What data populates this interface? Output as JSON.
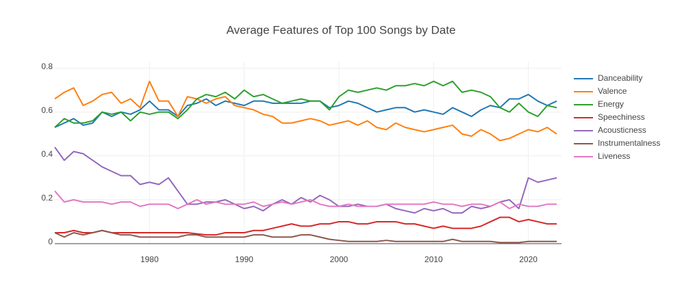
{
  "chart_data": {
    "type": "line",
    "title": "Average Features of Top 100 Songs by Date",
    "x": [
      1970,
      1971,
      1972,
      1973,
      1974,
      1975,
      1976,
      1977,
      1978,
      1979,
      1980,
      1981,
      1982,
      1983,
      1984,
      1985,
      1986,
      1987,
      1988,
      1989,
      1990,
      1991,
      1992,
      1993,
      1994,
      1995,
      1996,
      1997,
      1998,
      1999,
      2000,
      2001,
      2002,
      2003,
      2004,
      2005,
      2006,
      2007,
      2008,
      2009,
      2010,
      2011,
      2012,
      2013,
      2014,
      2015,
      2016,
      2017,
      2018,
      2019,
      2020,
      2021,
      2022,
      2023
    ],
    "xlim": [
      1970,
      2023.5
    ],
    "xticks": [
      1980,
      1990,
      2000,
      2010,
      2020
    ],
    "ylim": [
      0,
      0.83
    ],
    "yticks": [
      0,
      0.2,
      0.4,
      0.6,
      0.8
    ],
    "grid": true,
    "series": [
      {
        "name": "Danceability",
        "color": "#1f77b4",
        "values": [
          0.53,
          0.55,
          0.57,
          0.54,
          0.55,
          0.6,
          0.58,
          0.6,
          0.59,
          0.61,
          0.65,
          0.61,
          0.61,
          0.58,
          0.63,
          0.64,
          0.66,
          0.63,
          0.65,
          0.64,
          0.63,
          0.65,
          0.65,
          0.64,
          0.64,
          0.64,
          0.64,
          0.65,
          0.65,
          0.62,
          0.63,
          0.65,
          0.64,
          0.62,
          0.6,
          0.61,
          0.62,
          0.62,
          0.6,
          0.61,
          0.6,
          0.59,
          0.62,
          0.6,
          0.58,
          0.61,
          0.63,
          0.62,
          0.66,
          0.66,
          0.68,
          0.65,
          0.63,
          0.65
        ]
      },
      {
        "name": "Valence",
        "color": "#ff7f0e",
        "values": [
          0.66,
          0.69,
          0.71,
          0.63,
          0.65,
          0.68,
          0.69,
          0.64,
          0.66,
          0.62,
          0.74,
          0.65,
          0.65,
          0.58,
          0.67,
          0.66,
          0.64,
          0.66,
          0.67,
          0.63,
          0.62,
          0.61,
          0.59,
          0.58,
          0.55,
          0.55,
          0.56,
          0.57,
          0.56,
          0.54,
          0.55,
          0.56,
          0.54,
          0.56,
          0.53,
          0.52,
          0.55,
          0.53,
          0.52,
          0.51,
          0.52,
          0.53,
          0.54,
          0.5,
          0.49,
          0.52,
          0.5,
          0.47,
          0.48,
          0.5,
          0.52,
          0.51,
          0.53,
          0.5
        ]
      },
      {
        "name": "Energy",
        "color": "#2ca02c",
        "values": [
          0.53,
          0.57,
          0.55,
          0.55,
          0.56,
          0.6,
          0.59,
          0.6,
          0.56,
          0.6,
          0.59,
          0.6,
          0.6,
          0.57,
          0.61,
          0.66,
          0.68,
          0.67,
          0.69,
          0.66,
          0.7,
          0.67,
          0.68,
          0.66,
          0.64,
          0.65,
          0.66,
          0.65,
          0.65,
          0.61,
          0.67,
          0.7,
          0.69,
          0.7,
          0.71,
          0.7,
          0.72,
          0.72,
          0.73,
          0.72,
          0.74,
          0.72,
          0.74,
          0.69,
          0.7,
          0.69,
          0.67,
          0.62,
          0.6,
          0.64,
          0.6,
          0.58,
          0.63,
          0.62
        ]
      },
      {
        "name": "Speechiness",
        "color": "#d62728",
        "values": [
          0.05,
          0.05,
          0.06,
          0.05,
          0.05,
          0.06,
          0.05,
          0.05,
          0.05,
          0.05,
          0.05,
          0.05,
          0.05,
          0.05,
          0.05,
          0.045,
          0.04,
          0.04,
          0.05,
          0.05,
          0.05,
          0.06,
          0.06,
          0.07,
          0.08,
          0.09,
          0.08,
          0.08,
          0.09,
          0.09,
          0.1,
          0.1,
          0.09,
          0.09,
          0.1,
          0.1,
          0.1,
          0.09,
          0.09,
          0.08,
          0.07,
          0.08,
          0.07,
          0.07,
          0.07,
          0.08,
          0.1,
          0.12,
          0.12,
          0.1,
          0.11,
          0.1,
          0.09,
          0.09
        ]
      },
      {
        "name": "Acousticness",
        "color": "#9467bd",
        "values": [
          0.44,
          0.38,
          0.42,
          0.41,
          0.38,
          0.35,
          0.33,
          0.31,
          0.31,
          0.27,
          0.28,
          0.27,
          0.3,
          0.24,
          0.18,
          0.18,
          0.19,
          0.19,
          0.2,
          0.18,
          0.16,
          0.17,
          0.15,
          0.18,
          0.2,
          0.18,
          0.21,
          0.19,
          0.22,
          0.2,
          0.17,
          0.17,
          0.18,
          0.17,
          0.17,
          0.18,
          0.16,
          0.15,
          0.14,
          0.16,
          0.15,
          0.16,
          0.14,
          0.14,
          0.17,
          0.16,
          0.17,
          0.19,
          0.2,
          0.16,
          0.3,
          0.28,
          0.29,
          0.3
        ]
      },
      {
        "name": "Instrumentalness",
        "color": "#8c564b",
        "values": [
          0.05,
          0.03,
          0.05,
          0.04,
          0.05,
          0.06,
          0.05,
          0.04,
          0.04,
          0.03,
          0.03,
          0.03,
          0.03,
          0.03,
          0.04,
          0.04,
          0.03,
          0.03,
          0.03,
          0.03,
          0.03,
          0.04,
          0.04,
          0.03,
          0.03,
          0.03,
          0.04,
          0.04,
          0.03,
          0.02,
          0.015,
          0.01,
          0.01,
          0.01,
          0.01,
          0.015,
          0.01,
          0.01,
          0.01,
          0.01,
          0.01,
          0.01,
          0.02,
          0.01,
          0.01,
          0.01,
          0.01,
          0.005,
          0.005,
          0.005,
          0.01,
          0.01,
          0.01,
          0.01
        ]
      },
      {
        "name": "Liveness",
        "color": "#e377c2",
        "values": [
          0.24,
          0.19,
          0.2,
          0.19,
          0.19,
          0.19,
          0.18,
          0.19,
          0.19,
          0.17,
          0.18,
          0.18,
          0.18,
          0.16,
          0.18,
          0.2,
          0.18,
          0.19,
          0.18,
          0.18,
          0.18,
          0.19,
          0.17,
          0.18,
          0.19,
          0.18,
          0.19,
          0.2,
          0.18,
          0.17,
          0.17,
          0.18,
          0.17,
          0.17,
          0.17,
          0.18,
          0.18,
          0.18,
          0.18,
          0.18,
          0.19,
          0.18,
          0.18,
          0.17,
          0.18,
          0.18,
          0.17,
          0.19,
          0.16,
          0.18,
          0.17,
          0.17,
          0.18,
          0.18
        ]
      }
    ]
  }
}
